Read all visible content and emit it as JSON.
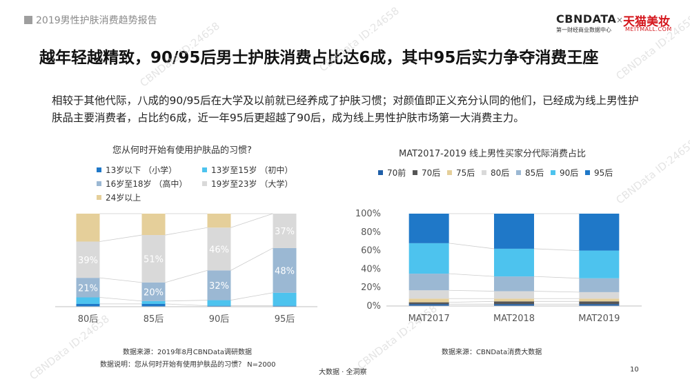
{
  "header": {
    "report_title": "2019男性护肤消费趋势报告",
    "cbn_logo": "CBNDATA",
    "cbn_logo_sub": "第一财经商业数据中心",
    "logo_separator": "×",
    "tmall_logo": "天猫美妆",
    "tmall_logo_sub": "MEITMALL.COM"
  },
  "page_title": "越年轻越精致，90/95后男士护肤消费占比达6成，其中95后实力争夺消费王座",
  "intro": "相较于其他代际，八成的90/95后在大学及以前就已经养成了护肤习惯；对颜值即正义充分认同的他们，已经成为线上男性护肤品主要消费者，占比约6成，近一年95后更超越了90后，成为线上男性护肤市场第一大消费主力。",
  "watermark_text": "CBNData ID:24658",
  "left_chart": {
    "source": "数据来源：2019年8月CBNData调研数据",
    "note": "数据说明：您从何时开始有使用护肤品的习惯？ N=2000"
  },
  "right_chart": {
    "source": "数据来源：CBNData消费大数据"
  },
  "footer": {
    "center": "大数据 · 全洞察",
    "page_number": "10"
  },
  "chart_data": [
    {
      "type": "bar",
      "stacked": true,
      "title": "您从何时开始有使用护肤品的习惯?",
      "categories": [
        "80后",
        "85后",
        "90后",
        "95后"
      ],
      "series": [
        {
          "name": "13岁以下 （小学）",
          "color": "#1f78c8",
          "values": [
            3,
            3,
            1,
            1
          ]
        },
        {
          "name": "13岁至15岁 （初中）",
          "color": "#4dc3ee",
          "values": [
            7,
            3,
            6,
            14
          ]
        },
        {
          "name": "16岁至18岁 （高中）",
          "color": "#9bb8d3",
          "values": [
            21,
            20,
            32,
            48
          ]
        },
        {
          "name": "19岁至23岁 （大学）",
          "color": "#d9d9d9",
          "values": [
            39,
            51,
            46,
            37
          ]
        },
        {
          "name": "24岁以上",
          "color": "#e5cf9a",
          "values": [
            30,
            23,
            15,
            0
          ]
        }
      ],
      "data_labels": [
        {
          "category": "80后",
          "series": "16岁至18岁 （高中）",
          "text": "21%"
        },
        {
          "category": "80后",
          "series": "19岁至23岁 （大学）",
          "text": "39%"
        },
        {
          "category": "85后",
          "series": "16岁至18岁 （高中）",
          "text": "20%"
        },
        {
          "category": "85后",
          "series": "19岁至23岁 （大学）",
          "text": "51%"
        },
        {
          "category": "90后",
          "series": "16岁至18岁 （高中）",
          "text": "32%"
        },
        {
          "category": "90后",
          "series": "19岁至23岁 （大学）",
          "text": "46%"
        },
        {
          "category": "95后",
          "series": "16岁至18岁 （高中）",
          "text": "48%"
        },
        {
          "category": "95后",
          "series": "19岁至23岁 （大学）",
          "text": "37%"
        }
      ],
      "ylim": [
        0,
        100
      ],
      "y_axis_shown": false,
      "legend_position": "top",
      "connector_lines": true
    },
    {
      "type": "bar",
      "stacked": true,
      "title": "MAT2017-2019 线上男性买家分代际消费占比",
      "categories": [
        "MAT2017",
        "MAT2018",
        "MAT2019"
      ],
      "series": [
        {
          "name": "70前",
          "color": "#1f5fa8",
          "values": [
            2,
            2,
            2
          ]
        },
        {
          "name": "70后",
          "color": "#555555",
          "values": [
            2,
            3,
            3
          ]
        },
        {
          "name": "75后",
          "color": "#e5cf9a",
          "values": [
            4,
            3,
            3
          ]
        },
        {
          "name": "80后",
          "color": "#d9d9d9",
          "values": [
            9,
            8,
            7
          ]
        },
        {
          "name": "85后",
          "color": "#9bb8d3",
          "values": [
            18,
            16,
            15
          ]
        },
        {
          "name": "90后",
          "color": "#4dc3ee",
          "values": [
            33,
            30,
            30
          ]
        },
        {
          "name": "95后",
          "color": "#1f78c8",
          "values": [
            32,
            38,
            40
          ]
        }
      ],
      "yticks": [
        "0%",
        "20%",
        "40%",
        "60%",
        "80%",
        "100%"
      ],
      "ylim": [
        0,
        100
      ],
      "legend_position": "top",
      "connector_lines": true
    }
  ]
}
